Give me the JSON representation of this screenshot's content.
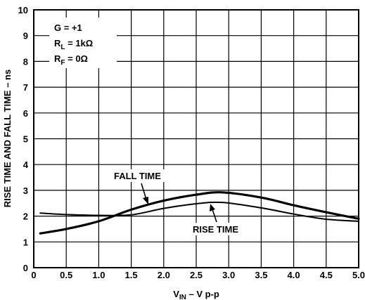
{
  "chart_data": {
    "type": "line",
    "xlabel_main": "V",
    "xlabel_sub": "IN",
    "xlabel_rest": " – V p-p",
    "ylabel": "RISE TIME AND FALL TIME – ns",
    "xlim": [
      0,
      5
    ],
    "ylim": [
      0,
      10
    ],
    "x_ticks": [
      "0",
      "0.5",
      "1.0",
      "1.5",
      "2.0",
      "2.5",
      "3.0",
      "3.5",
      "4.0",
      "4.5",
      "5.0"
    ],
    "y_ticks": [
      "0",
      "1",
      "2",
      "3",
      "4",
      "5",
      "6",
      "7",
      "8",
      "9",
      "10"
    ],
    "grid": true,
    "conditions": {
      "gain": "G = +1",
      "rl_main": "R",
      "rl_sub": "L",
      "rl_rest": " = 1kΩ",
      "rf_main": "R",
      "rf_sub": "F",
      "rf_rest": " = 0Ω"
    },
    "series": [
      {
        "name": "FALL TIME",
        "emphasis": "thick",
        "x": [
          0.1,
          0.5,
          1.0,
          1.5,
          2.0,
          2.5,
          2.9,
          3.5,
          4.0,
          4.5,
          5.0
        ],
        "y": [
          1.33,
          1.5,
          1.8,
          2.25,
          2.6,
          2.83,
          2.92,
          2.72,
          2.42,
          2.15,
          1.9
        ]
      },
      {
        "name": "RISE TIME",
        "emphasis": "thin",
        "x": [
          0.1,
          0.5,
          1.0,
          1.5,
          2.0,
          2.5,
          2.9,
          3.5,
          4.0,
          4.5,
          5.0
        ],
        "y": [
          2.12,
          2.06,
          2.03,
          2.05,
          2.3,
          2.48,
          2.53,
          2.32,
          2.08,
          1.88,
          1.8
        ]
      }
    ]
  }
}
